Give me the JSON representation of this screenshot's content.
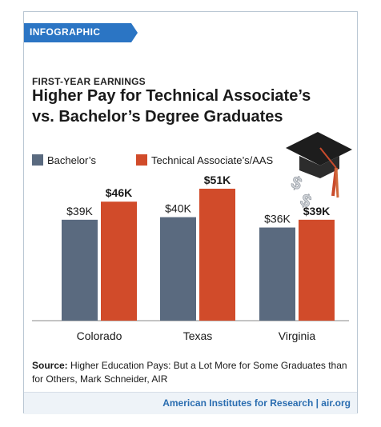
{
  "tag": "INFOGRAPHIC",
  "eyebrow": "FIRST-YEAR EARNINGS",
  "title_line1": "Higher Pay for Technical Associate’s",
  "title_line2": "vs. Bachelor’s Degree Graduates",
  "colors": {
    "bachelors": "#5a6a7f",
    "associates": "#d14b2a",
    "tag": "#2b75c4",
    "link": "#2a6db0"
  },
  "source_label": "Source:",
  "source_text": "Higher Education Pays: But a Lot More for Some Graduates than for Others, Mark Schneider, AIR",
  "footer": "American Institutes for Research | air.org",
  "chart_data": {
    "type": "bar",
    "categories": [
      "Colorado",
      "Texas",
      "Virginia"
    ],
    "series": [
      {
        "name": "Bachelor’s",
        "values": [
          39,
          40,
          36
        ],
        "labels": [
          "$39K",
          "$40K",
          "$36K"
        ]
      },
      {
        "name": "Technical Associate’s/AAS",
        "values": [
          46,
          51,
          39
        ],
        "labels": [
          "$46K",
          "$51K",
          "$39K"
        ]
      }
    ],
    "ylim": [
      0,
      51
    ],
    "grid": false,
    "legend": "top-left"
  }
}
